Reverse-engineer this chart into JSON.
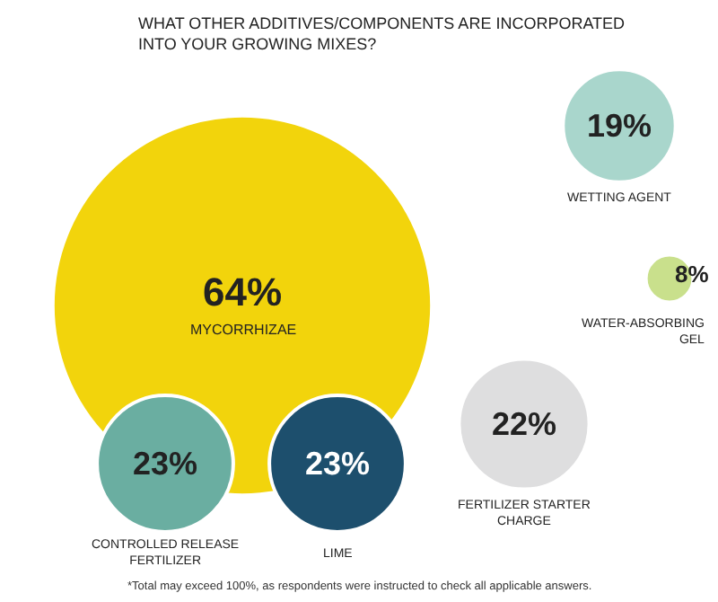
{
  "chart_data": {
    "type": "other",
    "title": "WHAT OTHER ADDITIVES/COMPONENTS ARE INCORPORATED INTO YOUR GROWING MIXES?",
    "categories": [
      "MYCORRHIZAE",
      "WETTING AGENT",
      "WATER-ABSORBING GEL",
      "FERTILIZER STARTER CHARGE",
      "LIME",
      "CONTROLLED RELEASE FERTILIZER"
    ],
    "values": [
      64,
      19,
      8,
      22,
      23,
      23
    ],
    "value_labels": [
      "64%",
      "19%",
      "8%",
      "22%",
      "23%",
      "23%"
    ],
    "colors": [
      "#f2d40c",
      "#a9d6cc",
      "#c9e08c",
      "#dededf",
      "#1d4f6d",
      "#6aaea1"
    ],
    "annotations": [
      "*Total may exceed 100%, as respondents were instructed to check all applicable answers."
    ]
  }
}
